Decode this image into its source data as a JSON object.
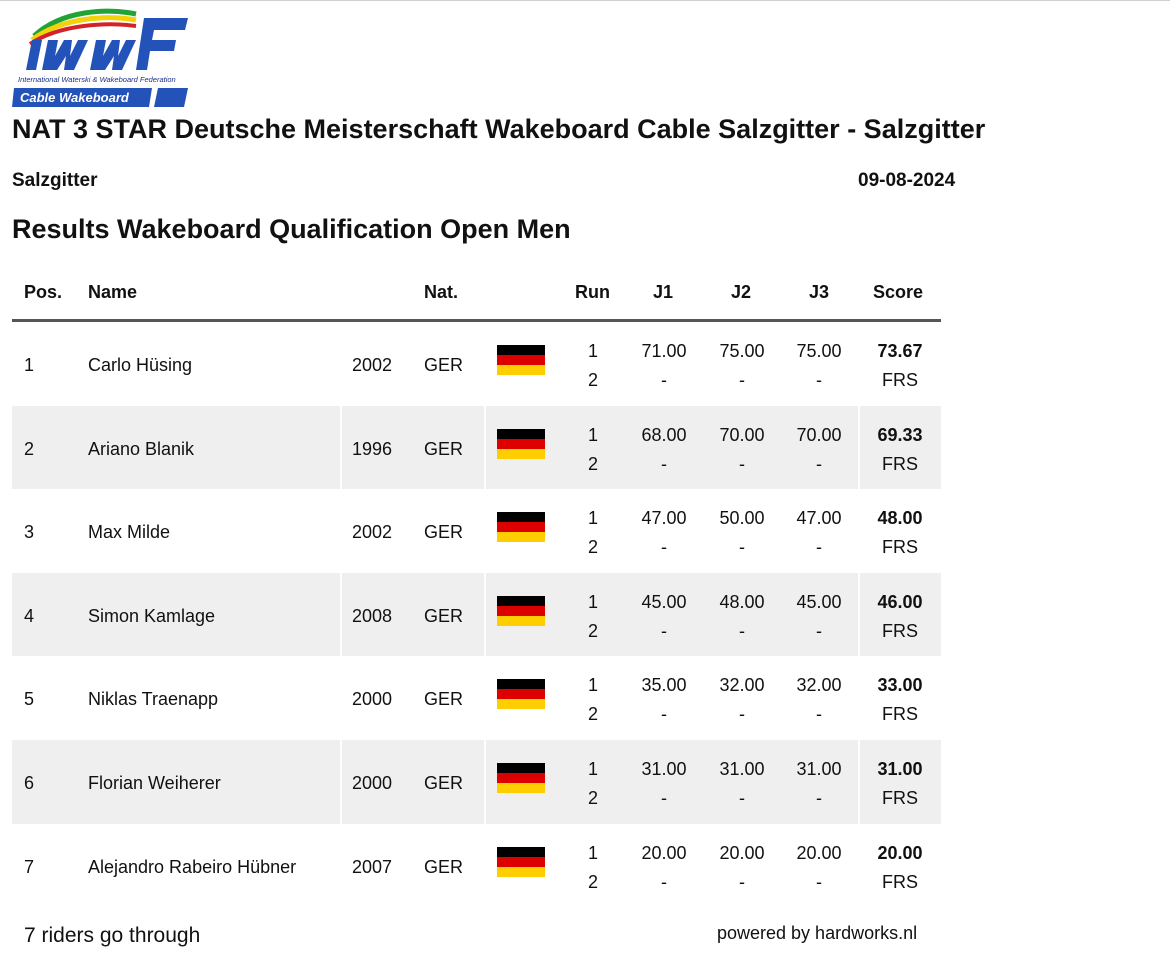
{
  "logo": {
    "wordmark": "IWWF",
    "caption": "International Waterski & Wakeboard Federation",
    "band": "Cable Wakeboard",
    "colors": {
      "blue": "#2352b8",
      "green": "#21a336",
      "yellow": "#f3d10b",
      "red": "#d2232a"
    }
  },
  "event": {
    "title": "NAT 3 STAR Deutsche Meisterschaft Wakeboard Cable Salzgitter - Salzgitter",
    "venue": "Salzgitter",
    "date": "09-08-2024"
  },
  "results_title": "Results Wakeboard Qualification Open Men",
  "table": {
    "headers": {
      "pos": "Pos.",
      "name": "Name",
      "nat": "Nat.",
      "run": "Run",
      "j1": "J1",
      "j2": "J2",
      "j3": "J3",
      "score": "Score"
    },
    "rows": [
      {
        "pos": "1",
        "name": "Carlo Hüsing",
        "year": "2002",
        "nat": "GER",
        "flag": "germany-flag-icon",
        "run1": "1",
        "run2": "2",
        "j1": "71.00",
        "j2": "75.00",
        "j3": "75.00",
        "j1_r2": "-",
        "j2_r2": "-",
        "j3_r2": "-",
        "score": "73.67",
        "status": "FRS"
      },
      {
        "pos": "2",
        "name": "Ariano Blanik",
        "year": "1996",
        "nat": "GER",
        "flag": "germany-flag-icon",
        "run1": "1",
        "run2": "2",
        "j1": "68.00",
        "j2": "70.00",
        "j3": "70.00",
        "j1_r2": "-",
        "j2_r2": "-",
        "j3_r2": "-",
        "score": "69.33",
        "status": "FRS"
      },
      {
        "pos": "3",
        "name": "Max Milde",
        "year": "2002",
        "nat": "GER",
        "flag": "germany-flag-icon",
        "run1": "1",
        "run2": "2",
        "j1": "47.00",
        "j2": "50.00",
        "j3": "47.00",
        "j1_r2": "-",
        "j2_r2": "-",
        "j3_r2": "-",
        "score": "48.00",
        "status": "FRS"
      },
      {
        "pos": "4",
        "name": "Simon Kamlage",
        "year": "2008",
        "nat": "GER",
        "flag": "germany-flag-icon",
        "run1": "1",
        "run2": "2",
        "j1": "45.00",
        "j2": "48.00",
        "j3": "45.00",
        "j1_r2": "-",
        "j2_r2": "-",
        "j3_r2": "-",
        "score": "46.00",
        "status": "FRS"
      },
      {
        "pos": "5",
        "name": "Niklas Traenapp",
        "year": "2000",
        "nat": "GER",
        "flag": "germany-flag-icon",
        "run1": "1",
        "run2": "2",
        "j1": "35.00",
        "j2": "32.00",
        "j3": "32.00",
        "j1_r2": "-",
        "j2_r2": "-",
        "j3_r2": "-",
        "score": "33.00",
        "status": "FRS"
      },
      {
        "pos": "6",
        "name": "Florian Weiherer",
        "year": "2000",
        "nat": "GER",
        "flag": "germany-flag-icon",
        "run1": "1",
        "run2": "2",
        "j1": "31.00",
        "j2": "31.00",
        "j3": "31.00",
        "j1_r2": "-",
        "j2_r2": "-",
        "j3_r2": "-",
        "score": "31.00",
        "status": "FRS"
      },
      {
        "pos": "7",
        "name": "Alejandro Rabeiro Hübner",
        "year": "2007",
        "nat": "GER",
        "flag": "germany-flag-icon",
        "run1": "1",
        "run2": "2",
        "j1": "20.00",
        "j2": "20.00",
        "j3": "20.00",
        "j1_r2": "-",
        "j2_r2": "-",
        "j3_r2": "-",
        "score": "20.00",
        "status": "FRS"
      }
    ]
  },
  "footer": {
    "note": "7 riders go through",
    "powered_by": "powered by hardworks.nl"
  }
}
